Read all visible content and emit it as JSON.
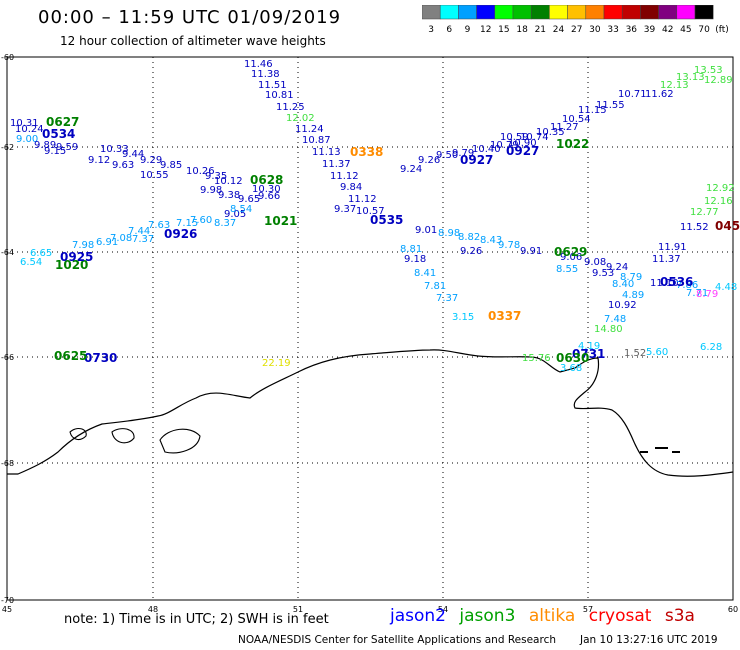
{
  "header": {
    "title": "00:00 – 11:59 UTC 01/09/2019",
    "subtitle": "12 hour collection of altimeter wave heights"
  },
  "scale": {
    "unit": "(ft)",
    "bins": [
      {
        "label": "3",
        "color": "#808080"
      },
      {
        "label": "6",
        "color": "#00ffff"
      },
      {
        "label": "9",
        "color": "#00a0ff"
      },
      {
        "label": "12",
        "color": "#0000ff"
      },
      {
        "label": "15",
        "color": "#00ff00"
      },
      {
        "label": "18",
        "color": "#00c000"
      },
      {
        "label": "21",
        "color": "#008000"
      },
      {
        "label": "24",
        "color": "#ffff00"
      },
      {
        "label": "27",
        "color": "#ffc000"
      },
      {
        "label": "30",
        "color": "#ff8000"
      },
      {
        "label": "33",
        "color": "#ff0000"
      },
      {
        "label": "36",
        "color": "#c00000"
      },
      {
        "label": "39",
        "color": "#800000"
      },
      {
        "label": "42",
        "color": "#800080"
      },
      {
        "label": "45",
        "color": "#ff00ff"
      },
      {
        "label": "70",
        "color": "#000000"
      }
    ]
  },
  "axes": {
    "lat_labels": [
      "-60",
      "-62",
      "-64",
      "-66",
      "-68",
      "-70"
    ],
    "lon_labels": [
      "45",
      "48",
      "51",
      "54",
      "57",
      "60"
    ]
  },
  "observations": [
    {
      "t": "11.46",
      "c": "#0000c0"
    },
    {
      "t": "11.38",
      "c": "#0000c0"
    },
    {
      "t": "11.51",
      "c": "#0000c0"
    },
    {
      "t": "10.81",
      "c": "#0000c0"
    },
    {
      "t": "11.25",
      "c": "#0000c0"
    },
    {
      "t": "12.02",
      "c": "#40e040"
    },
    {
      "t": "11.24",
      "c": "#0000c0"
    },
    {
      "t": "10.87",
      "c": "#0000c0"
    },
    {
      "t": "11.13",
      "c": "#0000c0"
    },
    {
      "t": "11.37",
      "c": "#0000c0"
    },
    {
      "t": "11.12",
      "c": "#0000c0"
    },
    {
      "t": "9.84",
      "c": "#0000c0"
    },
    {
      "t": "11.12",
      "c": "#0000c0"
    },
    {
      "t": "10.57",
      "c": "#0000c0"
    },
    {
      "t": "9.37",
      "c": "#0000c0"
    },
    {
      "t": "10.31",
      "c": "#0000c0"
    },
    {
      "t": "10.24",
      "c": "#0000c0"
    },
    {
      "t": "9.00",
      "c": "#00a0ff"
    },
    {
      "t": "9.89",
      "c": "#0000c0"
    },
    {
      "t": "9.15",
      "c": "#0000c0"
    },
    {
      "t": "9.59",
      "c": "#0000c0"
    },
    {
      "t": "9.12",
      "c": "#0000c0"
    },
    {
      "t": "10.33",
      "c": "#0000c0"
    },
    {
      "t": "9.44",
      "c": "#0000c0"
    },
    {
      "t": "9.63",
      "c": "#0000c0"
    },
    {
      "t": "9.29",
      "c": "#0000c0"
    },
    {
      "t": "9.85",
      "c": "#0000c0"
    },
    {
      "t": "10.55",
      "c": "#0000c0"
    },
    {
      "t": "10.26",
      "c": "#0000c0"
    },
    {
      "t": "9.35",
      "c": "#0000c0"
    },
    {
      "t": "10.12",
      "c": "#0000c0"
    },
    {
      "t": "9.98",
      "c": "#0000c0"
    },
    {
      "t": "9.38",
      "c": "#0000c0"
    },
    {
      "t": "10.30",
      "c": "#0000c0"
    },
    {
      "t": "9.65",
      "c": "#0000c0"
    },
    {
      "t": "9.66",
      "c": "#0000c0"
    },
    {
      "t": "9.05",
      "c": "#0000c0"
    },
    {
      "t": "8.54",
      "c": "#00a0ff"
    },
    {
      "t": "8.37",
      "c": "#00a0ff"
    },
    {
      "t": "7.60",
      "c": "#00a0ff"
    },
    {
      "t": "7.15",
      "c": "#00a0ff"
    },
    {
      "t": "7.44",
      "c": "#00a0ff"
    },
    {
      "t": "7.63",
      "c": "#00a0ff"
    },
    {
      "t": "7.08",
      "c": "#00a0ff"
    },
    {
      "t": "7.37",
      "c": "#00a0ff"
    },
    {
      "t": "6.91",
      "c": "#00a0ff"
    },
    {
      "t": "7.98",
      "c": "#00a0ff"
    },
    {
      "t": "6.65",
      "c": "#00c8ff"
    },
    {
      "t": "6.54",
      "c": "#00c8ff"
    },
    {
      "t": "9.24",
      "c": "#0000c0"
    },
    {
      "t": "9.26",
      "c": "#0000c0"
    },
    {
      "t": "9.50",
      "c": "#0000c0"
    },
    {
      "t": "9.79",
      "c": "#0000c0"
    },
    {
      "t": "10.40",
      "c": "#0000c0"
    },
    {
      "t": "10.79",
      "c": "#0000c0"
    },
    {
      "t": "10.59",
      "c": "#0000c0"
    },
    {
      "t": "10.90",
      "c": "#0000c0"
    },
    {
      "t": "10.74",
      "c": "#0000c0"
    },
    {
      "t": "10.35",
      "c": "#0000c0"
    },
    {
      "t": "11.27",
      "c": "#0000c0"
    },
    {
      "t": "10.54",
      "c": "#0000c0"
    },
    {
      "t": "11.15",
      "c": "#0000c0"
    },
    {
      "t": "11.55",
      "c": "#0000c0"
    },
    {
      "t": "10.71",
      "c": "#0000c0"
    },
    {
      "t": "11.62",
      "c": "#0000c0"
    },
    {
      "t": "12.13",
      "c": "#40e040"
    },
    {
      "t": "13.13",
      "c": "#40e040"
    },
    {
      "t": "13.53",
      "c": "#40e040"
    },
    {
      "t": "12.89",
      "c": "#40e040"
    },
    {
      "t": "12.92",
      "c": "#40e040"
    },
    {
      "t": "12.16",
      "c": "#40e040"
    },
    {
      "t": "12.77",
      "c": "#40e040"
    },
    {
      "t": "11.52",
      "c": "#0000c0"
    },
    {
      "t": "11.91",
      "c": "#0000c0"
    },
    {
      "t": "11.37",
      "c": "#0000c0"
    },
    {
      "t": "11.10",
      "c": "#0000c0"
    },
    {
      "t": "9.01",
      "c": "#0000c0"
    },
    {
      "t": "8.98",
      "c": "#00a0ff"
    },
    {
      "t": "8.82",
      "c": "#00a0ff"
    },
    {
      "t": "8.43",
      "c": "#00a0ff"
    },
    {
      "t": "9.78",
      "c": "#00a0ff"
    },
    {
      "t": "9.26",
      "c": "#0000c0"
    },
    {
      "t": "9.91",
      "c": "#0000c0"
    },
    {
      "t": "9.06",
      "c": "#0000c0"
    },
    {
      "t": "9.08",
      "c": "#0000c0"
    },
    {
      "t": "9.24",
      "c": "#0000c0"
    },
    {
      "t": "9.53",
      "c": "#0000c0"
    },
    {
      "t": "8.55",
      "c": "#00a0ff"
    },
    {
      "t": "8.79",
      "c": "#00a0ff"
    },
    {
      "t": "8.40",
      "c": "#00a0ff"
    },
    {
      "t": "7.86",
      "c": "#00a0ff"
    },
    {
      "t": "7.71",
      "c": "#00a0ff"
    },
    {
      "t": "8.81",
      "c": "#00a0ff"
    },
    {
      "t": "9.18",
      "c": "#0000c0"
    },
    {
      "t": "8.41",
      "c": "#00a0ff"
    },
    {
      "t": "7.81",
      "c": "#00a0ff"
    },
    {
      "t": "7.37",
      "c": "#00a0ff"
    },
    {
      "t": "3.15",
      "c": "#00c8ff"
    },
    {
      "t": "10.92",
      "c": "#0000c0"
    },
    {
      "t": "7.48",
      "c": "#00a0ff"
    },
    {
      "t": "4.89",
      "c": "#00a0ff"
    },
    {
      "t": "4.19",
      "c": "#00c8ff"
    },
    {
      "t": "14.80",
      "c": "#40e040"
    },
    {
      "t": "1.52",
      "c": "#606060"
    },
    {
      "t": "5.60",
      "c": "#00c8ff"
    },
    {
      "t": "15.76",
      "c": "#40e040"
    },
    {
      "t": "3.68",
      "c": "#00c8ff"
    },
    {
      "t": "22.19",
      "c": "#e0e000"
    },
    {
      "t": "8.79",
      "c": "#ff40ff"
    },
    {
      "t": "4.48",
      "c": "#00c8ff"
    },
    {
      "t": "6.28",
      "c": "#00c8ff"
    }
  ],
  "passes": [
    {
      "t": "0627",
      "c": "#008000"
    },
    {
      "t": "0628",
      "c": "#008000"
    },
    {
      "t": "1021",
      "c": "#008000"
    },
    {
      "t": "1020",
      "c": "#008000"
    },
    {
      "t": "0925",
      "c": "#0000c0"
    },
    {
      "t": "0926",
      "c": "#0000c0"
    },
    {
      "t": "0338",
      "c": "#ff8c00"
    },
    {
      "t": "0337",
      "c": "#ff8c00"
    },
    {
      "t": "0927",
      "c": "#0000c0"
    },
    {
      "t": "1022",
      "c": "#008000"
    },
    {
      "t": "0629",
      "c": "#008000"
    },
    {
      "t": "0536",
      "c": "#0000c0"
    },
    {
      "t": "045",
      "c": "#800000"
    },
    {
      "t": "0730",
      "c": "#0000c0"
    },
    {
      "t": "0731",
      "c": "#0000c0"
    },
    {
      "t": "0625",
      "c": "#008000"
    },
    {
      "t": "0630",
      "c": "#008000"
    },
    {
      "t": "0927",
      "c": "#0000c0"
    },
    {
      "t": "0534",
      "c": "#0000c0"
    },
    {
      "t": "0535",
      "c": "#0000c0"
    }
  ],
  "footer": {
    "note": "note:  1) Time is in UTC;  2) SWH is in feet",
    "satellites": [
      {
        "name": "jason2",
        "color": "#0000ff"
      },
      {
        "name": "jason3",
        "color": "#00a000"
      },
      {
        "name": "altika",
        "color": "#ff8c00"
      },
      {
        "name": "cryosat",
        "color": "#ff0000"
      },
      {
        "name": "s3a",
        "color": "#c00000"
      }
    ],
    "credit": "NOAA/NESDIS Center for Satellite Applications and Research",
    "timestamp": "Jan 10 13:27:16 UTC 2019"
  }
}
